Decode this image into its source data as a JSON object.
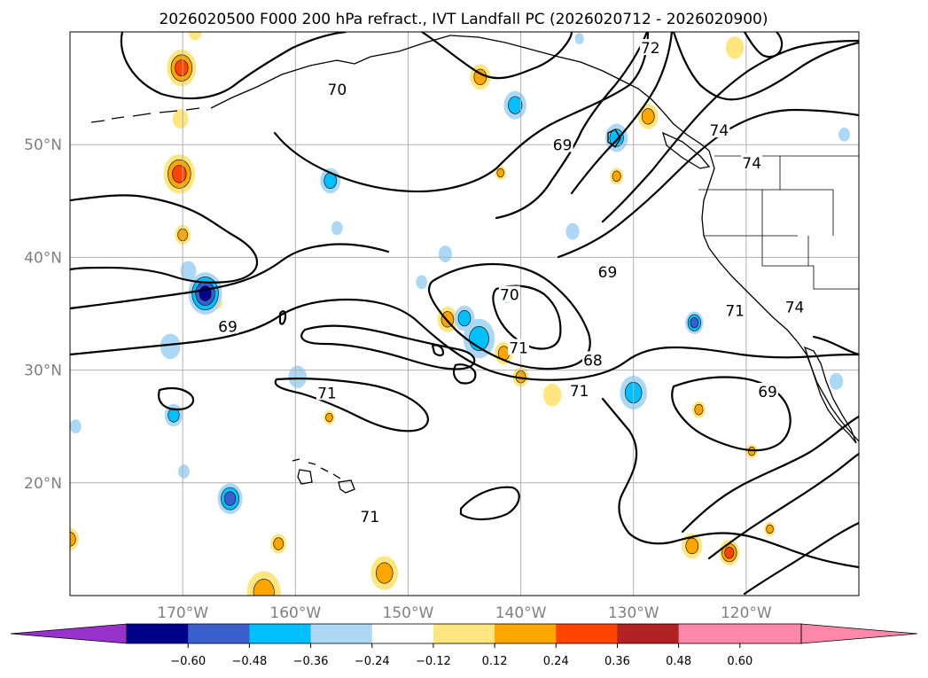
{
  "chart_data": {
    "type": "contour-map",
    "title": "2026020500 F000 200 hPa refract., IVT Landfall PC (2026020712 - 2026020900)",
    "projection": "PlateCarree",
    "extent": {
      "lon": [
        -180,
        -110
      ],
      "lat": [
        10,
        60
      ]
    },
    "lat_ticks": [
      {
        "value": 50,
        "label": "50°N"
      },
      {
        "value": 40,
        "label": "40°N"
      },
      {
        "value": 30,
        "label": "30°N"
      },
      {
        "value": 20,
        "label": "20°N"
      }
    ],
    "lon_ticks": [
      {
        "value": -170,
        "label": "170°W"
      },
      {
        "value": -160,
        "label": "160°W"
      },
      {
        "value": -150,
        "label": "150°W"
      },
      {
        "value": -140,
        "label": "140°W"
      },
      {
        "value": -130,
        "label": "130°W"
      },
      {
        "value": -120,
        "label": "120°W"
      }
    ],
    "colorbar": {
      "levels": [
        -0.72,
        -0.6,
        -0.48,
        -0.36,
        -0.24,
        -0.12,
        0.12,
        0.24,
        0.36,
        0.48,
        0.6,
        0.72
      ],
      "tick_labels": [
        "-0.60",
        "-0.48",
        "-0.36",
        "-0.24",
        "-0.12",
        "0.12",
        "0.24",
        "0.36",
        "0.48",
        "0.60"
      ],
      "colors": [
        "#9932cc",
        "#00008b",
        "#3a5fcd",
        "#00bfff",
        "#add8f5",
        "#ffffff",
        "#ffe680",
        "#ffa500",
        "#ff4500",
        "#b22222",
        "#ff88aa"
      ],
      "extend": "both"
    },
    "contour_labels": [
      {
        "text": "72",
        "lon": -128.5,
        "lat": 58.5
      },
      {
        "text": "74",
        "lon": -122.4,
        "lat": 51.2
      },
      {
        "text": "74",
        "lon": -119.5,
        "lat": 48.3
      },
      {
        "text": "74",
        "lon": -115.7,
        "lat": 35.5
      },
      {
        "text": "70",
        "lon": -156.3,
        "lat": 54.8
      },
      {
        "text": "69",
        "lon": -136.3,
        "lat": 49.9
      },
      {
        "text": "69",
        "lon": -132.3,
        "lat": 38.6
      },
      {
        "text": "70",
        "lon": -141.0,
        "lat": 36.6
      },
      {
        "text": "69",
        "lon": -166.0,
        "lat": 33.8
      },
      {
        "text": "71",
        "lon": -140.2,
        "lat": 31.9
      },
      {
        "text": "68",
        "lon": -133.6,
        "lat": 30.8
      },
      {
        "text": "71",
        "lon": -121.0,
        "lat": 35.2
      },
      {
        "text": "71",
        "lon": -134.8,
        "lat": 28.1
      },
      {
        "text": "71",
        "lon": -157.2,
        "lat": 27.9
      },
      {
        "text": "69",
        "lon": -118.1,
        "lat": 28.0
      },
      {
        "text": "71",
        "lon": -153.4,
        "lat": 16.9
      }
    ],
    "positive_anomalies": [
      {
        "lon": -170.1,
        "lat": 56.8,
        "r": 1.3,
        "v": 0.42
      },
      {
        "lon": -170.3,
        "lat": 47.4,
        "r": 1.4,
        "v": 0.4
      },
      {
        "lon": -143.6,
        "lat": 56.0,
        "r": 0.9,
        "v": 0.27
      },
      {
        "lon": -128.7,
        "lat": 52.5,
        "r": 0.9,
        "v": 0.3
      },
      {
        "lon": -121.0,
        "lat": 58.6,
        "r": 0.8,
        "v": 0.2
      },
      {
        "lon": -146.5,
        "lat": 34.5,
        "r": 0.9,
        "v": 0.3
      },
      {
        "lon": -141.5,
        "lat": 31.5,
        "r": 0.8,
        "v": 0.26
      },
      {
        "lon": -140.0,
        "lat": 29.4,
        "r": 0.7,
        "v": 0.24
      },
      {
        "lon": -137.2,
        "lat": 27.8,
        "r": 0.8,
        "v": 0.22
      },
      {
        "lon": -124.2,
        "lat": 26.5,
        "r": 0.6,
        "v": 0.35
      },
      {
        "lon": -124.8,
        "lat": 14.4,
        "r": 0.9,
        "v": 0.32
      },
      {
        "lon": -121.5,
        "lat": 13.8,
        "r": 0.9,
        "v": 0.38
      },
      {
        "lon": -152.1,
        "lat": 12.0,
        "r": 1.2,
        "v": 0.28
      },
      {
        "lon": -162.8,
        "lat": 10.3,
        "r": 1.5,
        "v": 0.3
      },
      {
        "lon": -168.9,
        "lat": 60.0,
        "r": 0.6,
        "v": 0.2
      },
      {
        "lon": -170.0,
        "lat": 42.0,
        "r": 0.7,
        "v": 0.24
      },
      {
        "lon": -161.5,
        "lat": 14.6,
        "r": 0.7,
        "v": 0.3
      },
      {
        "lon": -180.0,
        "lat": 15.0,
        "r": 0.8,
        "v": 0.28
      },
      {
        "lon": -167.0,
        "lat": 36.0,
        "r": 0.5,
        "v": 0.18
      },
      {
        "lon": -170.2,
        "lat": 52.3,
        "r": 0.7,
        "v": 0.18
      },
      {
        "lon": -131.5,
        "lat": 47.2,
        "r": 0.6,
        "v": 0.24
      },
      {
        "lon": -141.8,
        "lat": 47.5,
        "r": 0.5,
        "v": 0.28
      },
      {
        "lon": -119.5,
        "lat": 22.8,
        "r": 0.5,
        "v": 0.24
      },
      {
        "lon": -157.0,
        "lat": 25.8,
        "r": 0.5,
        "v": 0.24
      },
      {
        "lon": -117.9,
        "lat": 15.9,
        "r": 0.5,
        "v": 0.24
      }
    ],
    "negative_anomalies": [
      {
        "lon": -165.8,
        "lat": 18.6,
        "r": 1.1,
        "v": -0.36
      },
      {
        "lon": -168.0,
        "lat": 36.8,
        "r": 1.5,
        "v": -0.48
      },
      {
        "lon": -143.7,
        "lat": 32.8,
        "r": 1.4,
        "v": -0.3
      },
      {
        "lon": -145.0,
        "lat": 34.6,
        "r": 0.9,
        "v": -0.28
      },
      {
        "lon": -130.0,
        "lat": 28.0,
        "r": 1.2,
        "v": -0.33
      },
      {
        "lon": -124.6,
        "lat": 34.2,
        "r": 0.8,
        "v": -0.36
      },
      {
        "lon": -140.5,
        "lat": 53.5,
        "r": 1.0,
        "v": -0.3
      },
      {
        "lon": -131.5,
        "lat": 50.6,
        "r": 1.0,
        "v": -0.28
      },
      {
        "lon": -156.9,
        "lat": 46.8,
        "r": 0.9,
        "v": -0.26
      },
      {
        "lon": -170.8,
        "lat": 26.0,
        "r": 0.8,
        "v": -0.26
      },
      {
        "lon": -171.1,
        "lat": 32.1,
        "r": 0.9,
        "v": -0.22
      },
      {
        "lon": -159.8,
        "lat": 29.4,
        "r": 0.8,
        "v": -0.22
      },
      {
        "lon": -146.7,
        "lat": 40.3,
        "r": 0.6,
        "v": -0.18
      },
      {
        "lon": -141.2,
        "lat": 36.7,
        "r": 0.6,
        "v": -0.2
      },
      {
        "lon": -169.5,
        "lat": 38.8,
        "r": 0.7,
        "v": -0.18
      },
      {
        "lon": -135.4,
        "lat": 42.3,
        "r": 0.6,
        "v": -0.2
      },
      {
        "lon": -112.0,
        "lat": 29.0,
        "r": 0.6,
        "v": -0.22
      },
      {
        "lon": -179.5,
        "lat": 25.0,
        "r": 0.5,
        "v": -0.18
      },
      {
        "lon": -169.9,
        "lat": 21.0,
        "r": 0.5,
        "v": -0.18
      },
      {
        "lon": -148.8,
        "lat": 37.8,
        "r": 0.5,
        "v": -0.18
      },
      {
        "lon": -111.3,
        "lat": 50.9,
        "r": 0.5,
        "v": -0.22
      },
      {
        "lon": -134.8,
        "lat": 59.4,
        "r": 0.4,
        "v": -0.18
      },
      {
        "lon": -156.3,
        "lat": 42.6,
        "r": 0.5,
        "v": -0.18
      }
    ]
  }
}
